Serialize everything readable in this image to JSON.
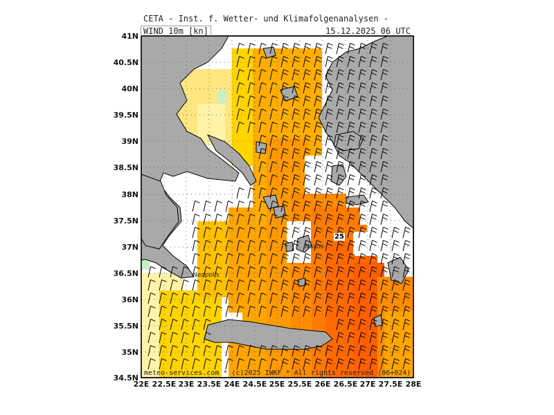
{
  "header": {
    "title": "CETA - Inst. f. Wetter- und Klimafolgenanalysen -",
    "subtitle_left": "WIND 10m [kn]",
    "subtitle_right": "15.12.2025 06 UTC"
  },
  "axes": {
    "lat_labels": [
      "41N",
      "40.5N",
      "40N",
      "39.5N",
      "39N",
      "38.5N",
      "38N",
      "37.5N",
      "37N",
      "36.5N",
      "36N",
      "35.5N",
      "35N",
      "34.5N"
    ],
    "lon_labels": [
      "22E",
      "22.5E",
      "23E",
      "23.5E",
      "24E",
      "24.5E",
      "25E",
      "25.5E",
      "26E",
      "26.5E",
      "27E",
      "27.5E",
      "28E"
    ]
  },
  "places": {
    "naxos": "Naxos",
    "neapolis": "Neapolis"
  },
  "value_badge": "25",
  "footer": "meteo-services.com * (c)2025 IWKF * All rights reserved (06+024)",
  "colors": {
    "sea_pale": "#fff3a8",
    "sea_yellow": "#ffd400",
    "sea_amber": "#ffae00",
    "sea_orange": "#ff8c00",
    "sea_deep": "#ff6a00",
    "land": "#a9a9a9",
    "light_green": "#c8f0c8"
  }
}
